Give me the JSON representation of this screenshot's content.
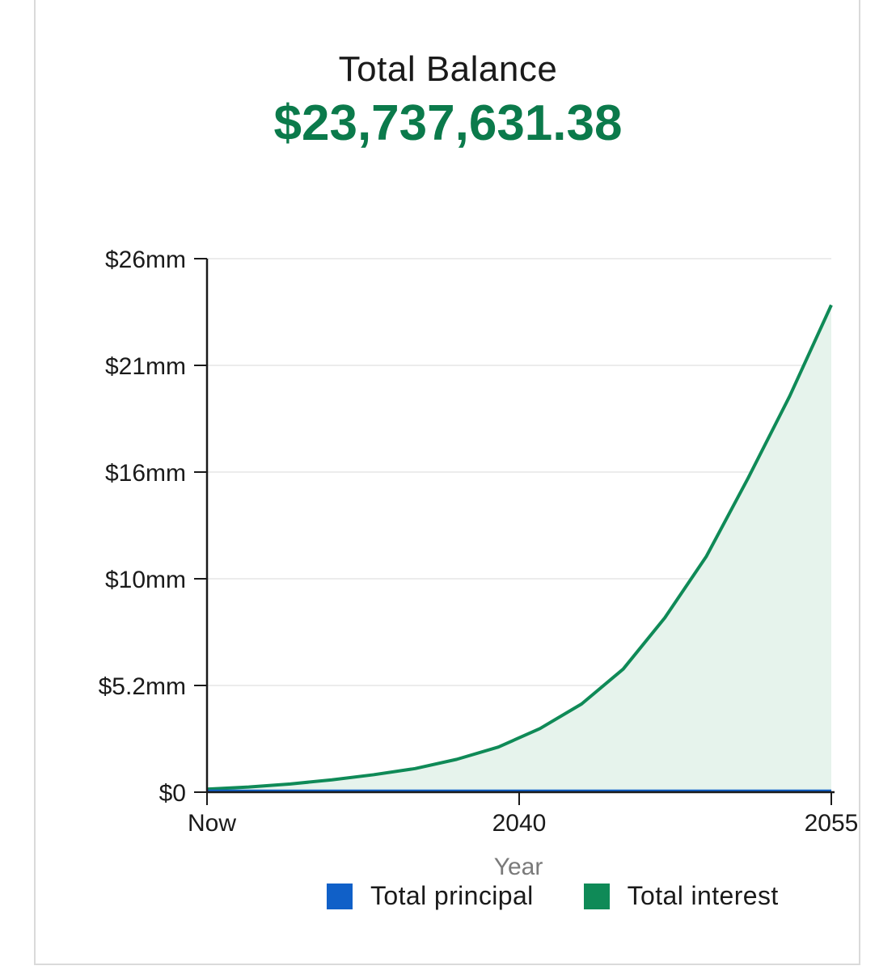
{
  "header": {
    "title": "Total Balance",
    "amount": "$23,737,631.38"
  },
  "colors": {
    "accent": "#0b7a4b",
    "principal": "#1060c8",
    "interest": "#0f8a57",
    "interest_fill": "#e6f3ec",
    "grid": "#ececec",
    "axis": "#1a1a1a"
  },
  "chart_data": {
    "type": "area",
    "title": "Total Balance",
    "xlabel": "Year",
    "ylabel": "",
    "x_ticks": [
      "Now",
      "2040",
      "2055"
    ],
    "y_ticks": [
      "$0",
      "$5.2mm",
      "$10mm",
      "$16mm",
      "$21mm",
      "$26mm"
    ],
    "y_tick_values": [
      0,
      5.2,
      10.4,
      15.6,
      20.8,
      26
    ],
    "ylim": [
      0,
      26
    ],
    "y_unit": "$ millions",
    "grid": true,
    "legend_position": "bottom",
    "x": [
      2025,
      2027,
      2029,
      2031,
      2033,
      2035,
      2037,
      2039,
      2041,
      2043,
      2045,
      2047,
      2049,
      2051,
      2053,
      2055
    ],
    "series": [
      {
        "name": "Total principal",
        "values": [
          0.05,
          0.05,
          0.05,
          0.05,
          0.05,
          0.05,
          0.05,
          0.05,
          0.05,
          0.05,
          0.05,
          0.05,
          0.05,
          0.05,
          0.05,
          0.05
        ]
      },
      {
        "name": "Total interest",
        "values": [
          0.15,
          0.25,
          0.4,
          0.6,
          0.85,
          1.15,
          1.6,
          2.2,
          3.1,
          4.3,
          6.0,
          8.5,
          11.5,
          15.3,
          19.3,
          23.74
        ]
      }
    ]
  }
}
